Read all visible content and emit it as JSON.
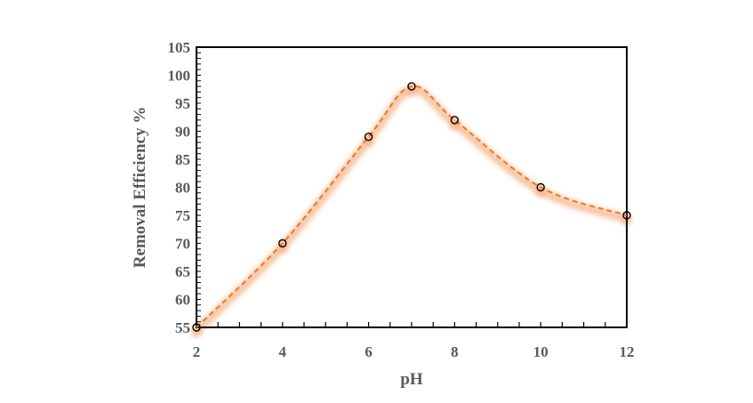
{
  "chart_data": {
    "type": "line",
    "title": "",
    "xlabel": "pH",
    "ylabel": "Removal Efficiency %",
    "x": [
      2,
      4,
      6,
      7,
      8,
      10,
      12
    ],
    "series": [
      {
        "values": [
          55,
          70,
          89,
          98,
          92,
          80,
          75
        ]
      }
    ],
    "xlim": [
      2,
      12
    ],
    "ylim": [
      55,
      105
    ],
    "xticks": [
      2,
      4,
      6,
      8,
      10,
      12
    ],
    "yticks": [
      55,
      60,
      65,
      70,
      75,
      80,
      85,
      90,
      95,
      100,
      105
    ],
    "grid": false,
    "legend": "none",
    "line_style": "dashed smooth",
    "marker": "open circle",
    "colors": {
      "line": "#ed7d31",
      "glow": "#f4b183",
      "marker": "#000000",
      "axis": "#000000",
      "text": "#595959"
    }
  }
}
